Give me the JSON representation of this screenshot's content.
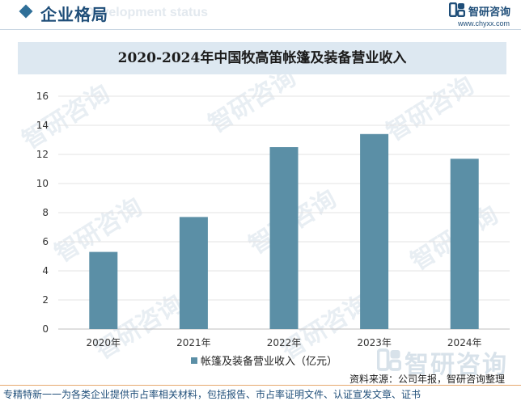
{
  "header": {
    "section_title": "企业格局",
    "section_subtitle": "Development status",
    "logo_text": "智研咨询",
    "logo_url": "www.chyxx.com"
  },
  "watermark": {
    "text": "智研咨询",
    "big_text": "智研咨询"
  },
  "chart_data": {
    "type": "bar",
    "title": "2020-2024年中国牧高笛帐篷及装备营业收入",
    "categories": [
      "2020年",
      "2021年",
      "2022年",
      "2023年",
      "2024年"
    ],
    "series": [
      {
        "name": "帐篷及装备营业收入（亿元）",
        "values": [
          5.3,
          7.7,
          12.5,
          13.4,
          11.7
        ],
        "color": "#5b8fa6"
      }
    ],
    "yticks": [
      "0",
      "2",
      "4",
      "6",
      "8",
      "10",
      "12",
      "14",
      "16"
    ],
    "ylim": [
      0,
      16
    ],
    "xlabel": "",
    "ylabel": "",
    "grid": true,
    "legend_position": "bottom"
  },
  "source": "资料来源：公司年报，智研咨询整理",
  "footer": "专精特新一一为各类企业提供市占率相关材料，包括报告、市占率证明文件、认证宣发文章、证书"
}
